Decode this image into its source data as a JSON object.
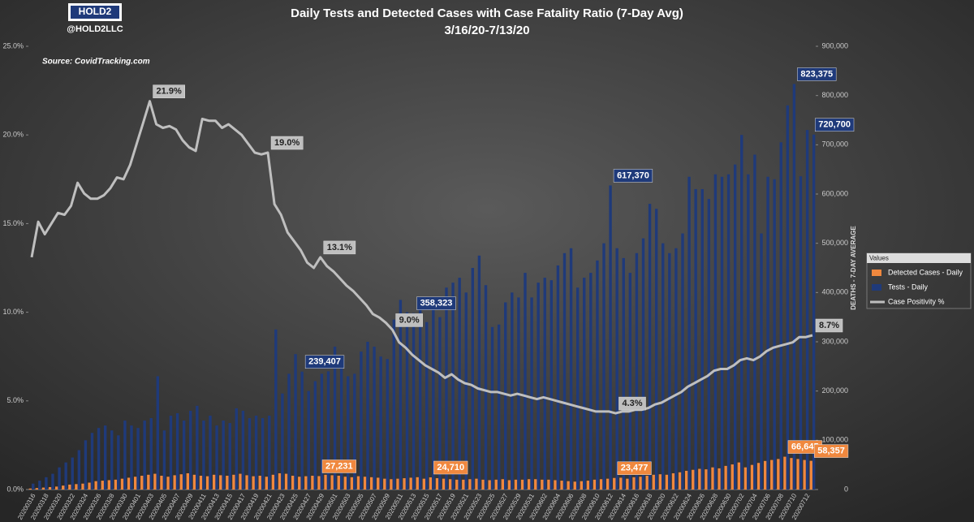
{
  "chart_data": {
    "type": "bar-line",
    "title": "Daily Tests and Detected Cases with Case Fatality Ratio (7-Day Avg)",
    "subtitle": "3/16/20-7/13/20",
    "logo": "HOLD2",
    "handle": "@HOLD2LLC",
    "source": "Source: CovidTracking.com",
    "y2_label": "DEATHS - 7-DAY AVERAGE",
    "legend_title": "Values",
    "categories": [
      "20200316",
      null,
      "20200318",
      null,
      "20200320",
      null,
      "20200322",
      null,
      "20200324",
      null,
      "20200326",
      null,
      "20200328",
      null,
      "20200330",
      null,
      "20200401",
      null,
      "20200403",
      null,
      "20200405",
      null,
      "20200407",
      null,
      "20200409",
      null,
      "20200411",
      null,
      "20200413",
      null,
      "20200415",
      null,
      "20200417",
      null,
      "20200419",
      null,
      "20200421",
      null,
      "20200423",
      null,
      "20200425",
      null,
      "20200427",
      null,
      "20200429",
      null,
      "20200501",
      null,
      "20200503",
      null,
      "20200505",
      null,
      "20200507",
      null,
      "20200509",
      null,
      "20200511",
      null,
      "20200513",
      null,
      "20200515",
      null,
      "20200517",
      null,
      "20200519",
      null,
      "20200521",
      null,
      "20200523",
      null,
      "20200525",
      null,
      "20200527",
      null,
      "20200529",
      null,
      "20200531",
      null,
      "20200602",
      null,
      "20200604",
      null,
      "20200606",
      null,
      "20200608",
      null,
      "20200610",
      null,
      "20200612",
      null,
      "20200614",
      null,
      "20200616",
      null,
      "20200618",
      null,
      "20200620",
      null,
      "20200622",
      null,
      "20200624",
      null,
      "20200626",
      null,
      "20200628",
      null,
      "20200630",
      null,
      "20200702",
      null,
      "20200704",
      null,
      "20200706",
      null,
      "20200708",
      null,
      "20200710",
      null,
      "20200712",
      null
    ],
    "series": [
      {
        "name": "Detected Cases - Daily",
        "color": "#f0883e",
        "kind": "bar",
        "axis": "y2",
        "values": [
          2000,
          3000,
          4000,
          5000,
          6000,
          8000,
          10000,
          11000,
          12000,
          14000,
          17000,
          18000,
          19000,
          20000,
          22000,
          24000,
          26000,
          28000,
          30000,
          32000,
          28000,
          26000,
          29000,
          31000,
          33000,
          30000,
          28000,
          27000,
          30000,
          29000,
          28000,
          30000,
          32000,
          29000,
          27000,
          28000,
          26000,
          30000,
          33000,
          32000,
          28000,
          26000,
          27000,
          28000,
          27231,
          30000,
          29000,
          28000,
          26000,
          25000,
          27000,
          26000,
          25000,
          24000,
          22000,
          21000,
          22000,
          23000,
          24000,
          25000,
          22000,
          24710,
          23000,
          22000,
          21000,
          20000,
          20000,
          21000,
          22000,
          20000,
          19000,
          20000,
          21000,
          19000,
          20000,
          20000,
          21000,
          21000,
          20000,
          20000,
          19000,
          18000,
          17000,
          16000,
          17000,
          18000,
          20000,
          21000,
          22000,
          23477,
          24000,
          22000,
          25000,
          26000,
          28000,
          30000,
          31000,
          30000,
          33000,
          35000,
          38000,
          40000,
          42000,
          41000,
          45000,
          43000,
          48000,
          51000,
          55000,
          45000,
          50000,
          54000,
          58000,
          60000,
          62000,
          66645,
          64000,
          62000,
          60000,
          58357
        ],
        "value_labels": [
          null,
          null,
          null,
          null,
          null,
          null,
          null,
          null,
          null,
          null,
          null,
          null,
          null,
          null,
          null,
          null,
          null,
          null,
          null,
          null,
          null,
          null,
          null,
          null,
          null,
          null,
          null,
          null,
          null,
          null,
          null,
          null,
          null,
          null,
          null,
          null,
          null,
          null,
          null,
          null,
          null,
          null,
          null,
          null,
          "27,231",
          null,
          null,
          null,
          null,
          null,
          null,
          null,
          null,
          null,
          null,
          null,
          null,
          null,
          null,
          null,
          null,
          "24,710",
          null,
          null,
          null,
          null,
          null,
          null,
          null,
          null,
          null,
          null,
          null,
          null,
          null,
          null,
          null,
          null,
          null,
          null,
          null,
          null,
          null,
          null,
          null,
          null,
          null,
          null,
          null,
          "23,477",
          null,
          null,
          null,
          null,
          null,
          null,
          null,
          null,
          null,
          null,
          null,
          null,
          null,
          null,
          null,
          null,
          null,
          null,
          null,
          null,
          null,
          null,
          null,
          null,
          null,
          "66,645",
          null,
          null,
          null,
          "58,357"
        ]
      },
      {
        "name": "Tests - Daily",
        "color": "#1f3a7a",
        "kind": "bar",
        "axis": "y2",
        "values": [
          12000,
          18000,
          25000,
          32000,
          45000,
          55000,
          65000,
          80000,
          100000,
          115000,
          125000,
          130000,
          120000,
          110000,
          140000,
          130000,
          125000,
          140000,
          145000,
          230000,
          120000,
          150000,
          155000,
          140000,
          160000,
          170000,
          140000,
          150000,
          130000,
          140000,
          135000,
          165000,
          160000,
          145000,
          150000,
          145000,
          150000,
          325000,
          195000,
          235000,
          275000,
          239407,
          200000,
          220000,
          235000,
          240000,
          290000,
          250000,
          230000,
          235000,
          280000,
          300000,
          290000,
          270000,
          265000,
          345000,
          385000,
          360000,
          358323,
          390000,
          340000,
          365000,
          350000,
          410000,
          420000,
          430000,
          400000,
          450000,
          475000,
          415000,
          330000,
          335000,
          380000,
          400000,
          390000,
          440000,
          390000,
          420000,
          430000,
          425000,
          455000,
          480000,
          490000,
          410000,
          430000,
          440000,
          465000,
          500000,
          617370,
          490000,
          470000,
          440000,
          480000,
          510000,
          580000,
          570000,
          500000,
          480000,
          490000,
          520000,
          635000,
          610000,
          610000,
          590000,
          640000,
          635000,
          640000,
          660000,
          720000,
          640000,
          680000,
          520000,
          635000,
          630000,
          705000,
          780000,
          823375,
          636000,
          730000,
          720700
        ],
        "value_labels": [
          null,
          null,
          null,
          null,
          null,
          null,
          null,
          null,
          null,
          null,
          null,
          null,
          null,
          null,
          null,
          null,
          null,
          null,
          null,
          null,
          null,
          null,
          null,
          null,
          null,
          null,
          null,
          null,
          null,
          null,
          null,
          null,
          null,
          null,
          null,
          null,
          null,
          null,
          null,
          null,
          null,
          "239,407",
          null,
          null,
          null,
          null,
          null,
          null,
          null,
          null,
          null,
          null,
          null,
          null,
          null,
          null,
          null,
          null,
          "358,323",
          null,
          null,
          null,
          null,
          null,
          null,
          null,
          null,
          null,
          null,
          null,
          null,
          null,
          null,
          null,
          null,
          null,
          null,
          null,
          null,
          null,
          null,
          null,
          null,
          null,
          null,
          null,
          null,
          null,
          "617,370",
          null,
          null,
          null,
          null,
          null,
          null,
          null,
          null,
          null,
          null,
          null,
          null,
          null,
          null,
          null,
          null,
          null,
          null,
          null,
          null,
          null,
          null,
          null,
          null,
          null,
          null,
          null,
          "823,375",
          null,
          null,
          "720,700"
        ]
      },
      {
        "name": "Case Positivity %",
        "color": "#bfbfbf",
        "kind": "line",
        "axis": "y",
        "values": [
          13.1,
          15.1,
          14.4,
          15.0,
          15.6,
          15.5,
          16.0,
          17.3,
          16.7,
          16.4,
          16.4,
          16.6,
          17.0,
          17.6,
          17.5,
          18.3,
          19.5,
          20.7,
          21.9,
          20.6,
          20.4,
          20.5,
          20.3,
          19.7,
          19.3,
          19.1,
          20.9,
          20.8,
          20.8,
          20.4,
          20.6,
          20.3,
          20.0,
          19.5,
          19.0,
          18.9,
          19.0,
          16.1,
          15.5,
          14.5,
          14.0,
          13.5,
          12.8,
          12.5,
          13.1,
          12.6,
          12.3,
          11.9,
          11.5,
          11.2,
          10.8,
          10.4,
          9.9,
          9.7,
          9.4,
          9.0,
          8.3,
          8.0,
          7.6,
          7.3,
          7.0,
          6.8,
          6.6,
          6.3,
          6.5,
          6.2,
          6.0,
          5.9,
          5.7,
          5.6,
          5.5,
          5.5,
          5.4,
          5.3,
          5.4,
          5.3,
          5.2,
          5.1,
          5.2,
          5.1,
          5.0,
          4.9,
          4.8,
          4.7,
          4.6,
          4.5,
          4.4,
          4.4,
          4.4,
          4.3,
          4.4,
          4.4,
          4.5,
          4.5,
          4.6,
          4.8,
          4.9,
          5.1,
          5.3,
          5.5,
          5.8,
          6.0,
          6.2,
          6.4,
          6.7,
          6.8,
          6.8,
          7.0,
          7.3,
          7.4,
          7.3,
          7.5,
          7.8,
          8.0,
          8.1,
          8.2,
          8.3,
          8.6,
          8.6,
          8.7
        ],
        "value_labels": [
          null,
          null,
          null,
          null,
          null,
          null,
          null,
          null,
          null,
          null,
          null,
          null,
          null,
          null,
          null,
          null,
          null,
          null,
          "21.9%",
          null,
          null,
          null,
          null,
          null,
          null,
          null,
          null,
          null,
          null,
          null,
          null,
          null,
          null,
          null,
          null,
          null,
          "19.0%",
          null,
          null,
          null,
          null,
          null,
          null,
          null,
          "13.1%",
          null,
          null,
          null,
          null,
          null,
          null,
          null,
          null,
          null,
          null,
          "9.0%",
          null,
          null,
          null,
          null,
          null,
          null,
          null,
          null,
          null,
          null,
          null,
          null,
          null,
          null,
          null,
          null,
          null,
          null,
          null,
          null,
          null,
          null,
          null,
          null,
          null,
          null,
          null,
          null,
          null,
          null,
          null,
          null,
          null,
          "4.3%",
          null,
          null,
          null,
          null,
          null,
          null,
          null,
          null,
          null,
          null,
          null,
          null,
          null,
          null,
          null,
          null,
          null,
          null,
          null,
          null,
          null,
          null,
          null,
          null,
          null,
          null,
          null,
          null,
          null,
          "8.7%"
        ]
      }
    ],
    "ylim": [
      0,
      25
    ],
    "yticks": [
      {
        "value": 0,
        "label": "0.0%"
      },
      {
        "value": 5,
        "label": "5.0%"
      },
      {
        "value": 10,
        "label": "10.0%"
      },
      {
        "value": 15,
        "label": "15.0%"
      },
      {
        "value": 20,
        "label": "20.0%"
      },
      {
        "value": 25,
        "label": "25.0%"
      }
    ],
    "y2lim": [
      0,
      900000
    ],
    "y2ticks": [
      0,
      {
        "value": 100000,
        "label": "100,000"
      },
      {
        "value": 200000,
        "label": "200,000"
      },
      {
        "value": 300000,
        "label": "300,000"
      },
      {
        "value": 400000,
        "label": "400,000"
      },
      {
        "value": 500000,
        "label": "500,000"
      },
      {
        "value": 600000,
        "label": "600,000"
      },
      {
        "value": 700000,
        "label": "700,000"
      },
      {
        "value": 800000,
        "label": "800,000"
      },
      {
        "value": 900000,
        "label": "900,000"
      }
    ],
    "legend": "right"
  }
}
